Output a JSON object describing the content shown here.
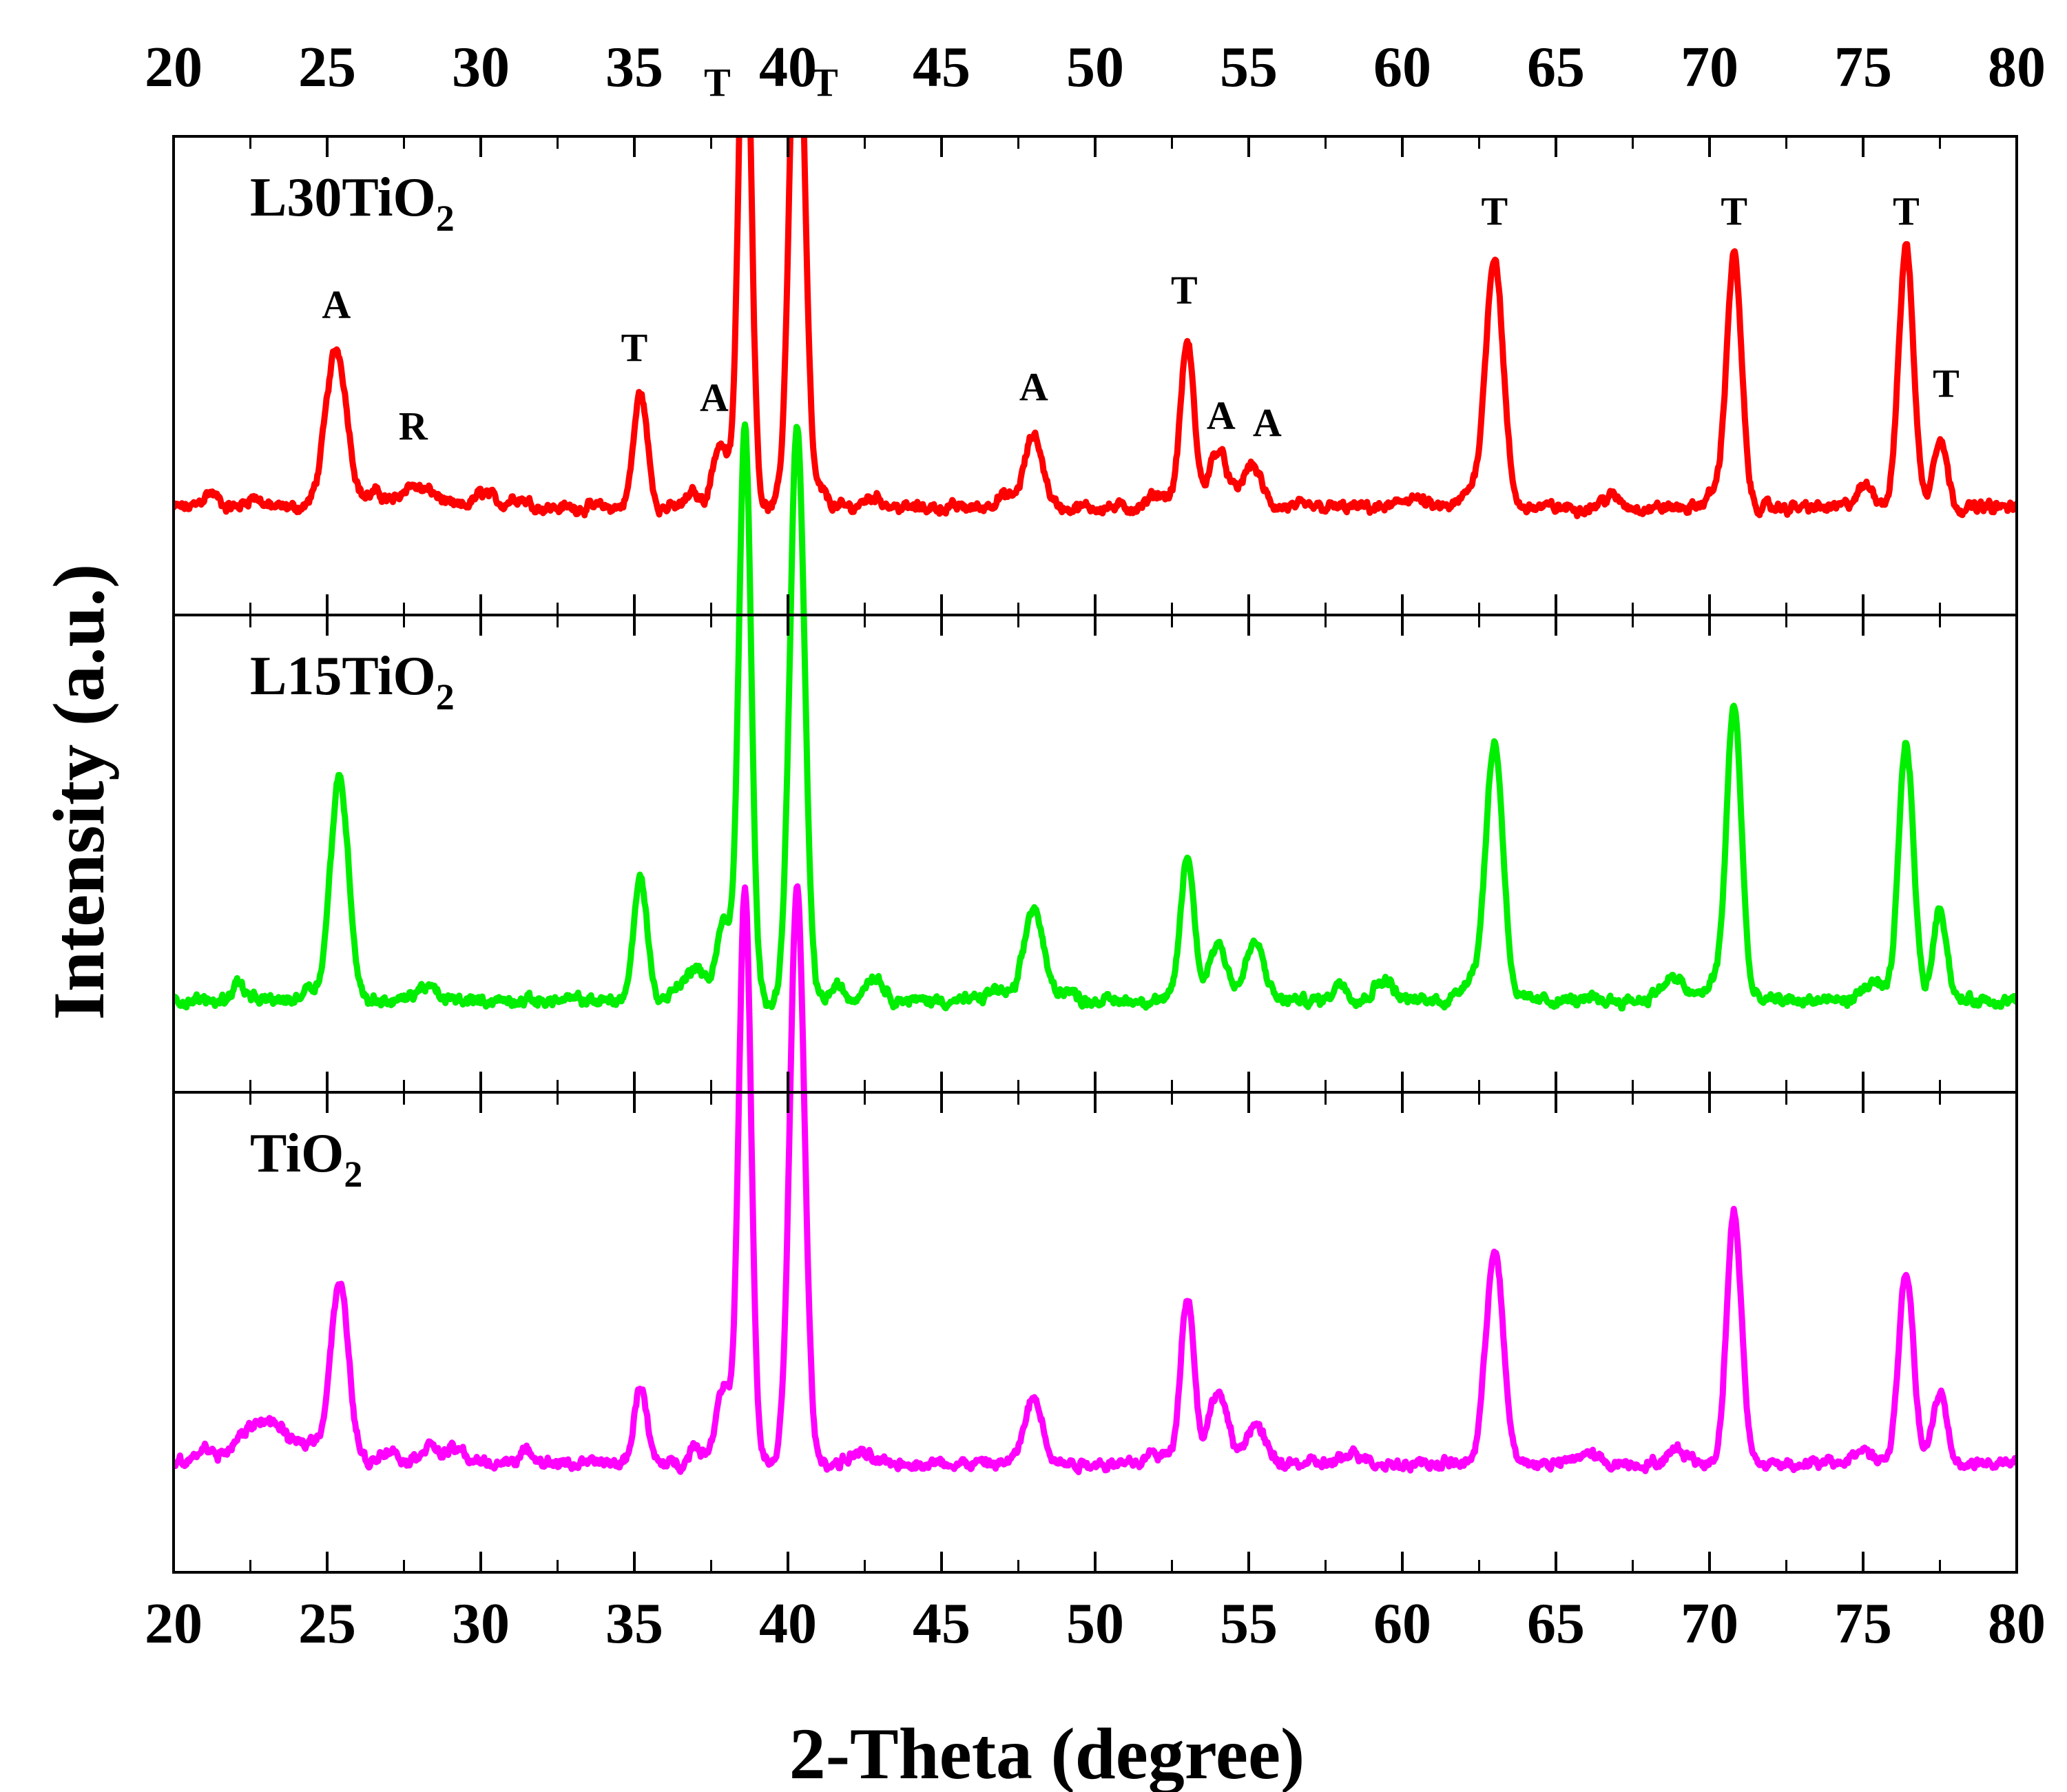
{
  "chart_data": {
    "type": "line",
    "xlabel": "2-Theta (degree)",
    "ylabel": "Intensity (a.u.)",
    "xlim": [
      20,
      80
    ],
    "xticks": [
      20,
      25,
      30,
      35,
      40,
      45,
      50,
      55,
      60,
      65,
      70,
      75,
      80
    ],
    "xtick_labels": [
      "20",
      "25",
      "30",
      "35",
      "40",
      "45",
      "50",
      "55",
      "60",
      "65",
      "70",
      "75",
      "80"
    ],
    "panels": [
      {
        "name": "L30TiO2",
        "label_main": "L30TiO",
        "label_sub": "2",
        "color": "#ff0000",
        "baseline": 0.3,
        "peaks": [
          [
            21.2,
            0.04,
            0.25
          ],
          [
            22.6,
            0.03,
            0.25
          ],
          [
            25.3,
            0.44,
            0.35
          ],
          [
            26.6,
            0.04,
            0.3
          ],
          [
            27.7,
            0.06,
            0.3
          ],
          [
            28.4,
            0.04,
            0.3
          ],
          [
            30.1,
            0.04,
            0.3
          ],
          [
            31.2,
            0.03,
            0.3
          ],
          [
            35.2,
            0.32,
            0.22
          ],
          [
            36.9,
            0.04,
            0.2
          ],
          [
            37.8,
            0.18,
            0.25
          ],
          [
            38.6,
            1.6,
            0.2
          ],
          [
            40.3,
            1.6,
            0.24
          ],
          [
            41.1,
            0.04,
            0.2
          ],
          [
            42.8,
            0.03,
            0.3
          ],
          [
            47.0,
            0.03,
            0.3
          ],
          [
            48.0,
            0.2,
            0.3
          ],
          [
            52.1,
            0.04,
            0.3
          ],
          [
            53.0,
            0.46,
            0.22
          ],
          [
            54.0,
            0.16,
            0.3
          ],
          [
            55.1,
            0.12,
            0.3
          ],
          [
            60.3,
            0.03,
            0.3
          ],
          [
            62.3,
            0.05,
            0.3
          ],
          [
            63.0,
            0.7,
            0.28
          ],
          [
            66.8,
            0.03,
            0.3
          ],
          [
            70.2,
            0.04,
            0.3
          ],
          [
            70.8,
            0.7,
            0.24
          ],
          [
            75.1,
            0.06,
            0.3
          ],
          [
            76.4,
            0.73,
            0.24
          ],
          [
            77.5,
            0.2,
            0.22
          ]
        ]
      },
      {
        "name": "L15TiO2",
        "label_main": "L15TiO",
        "label_sub": "2",
        "color": "#00ee00",
        "baseline": 0.26,
        "peaks": [
          [
            22.1,
            0.05,
            0.2
          ],
          [
            24.4,
            0.04,
            0.2
          ],
          [
            25.4,
            0.62,
            0.3
          ],
          [
            28.2,
            0.04,
            0.3
          ],
          [
            35.2,
            0.34,
            0.22
          ],
          [
            36.4,
            0.04,
            0.2
          ],
          [
            37.0,
            0.1,
            0.25
          ],
          [
            37.9,
            0.22,
            0.25
          ],
          [
            38.6,
            1.6,
            0.2
          ],
          [
            40.3,
            1.6,
            0.24
          ],
          [
            41.6,
            0.04,
            0.2
          ],
          [
            42.8,
            0.07,
            0.3
          ],
          [
            46.8,
            0.03,
            0.3
          ],
          [
            48.0,
            0.26,
            0.3
          ],
          [
            49.0,
            0.03,
            0.3
          ],
          [
            53.0,
            0.4,
            0.22
          ],
          [
            54.0,
            0.16,
            0.3
          ],
          [
            55.2,
            0.16,
            0.3
          ],
          [
            58.0,
            0.05,
            0.25
          ],
          [
            59.4,
            0.06,
            0.3
          ],
          [
            62.2,
            0.06,
            0.3
          ],
          [
            63.0,
            0.72,
            0.28
          ],
          [
            68.8,
            0.06,
            0.4
          ],
          [
            70.2,
            0.05,
            0.3
          ],
          [
            70.8,
            0.82,
            0.24
          ],
          [
            75.3,
            0.05,
            0.3
          ],
          [
            76.4,
            0.72,
            0.24
          ],
          [
            77.5,
            0.26,
            0.22
          ]
        ]
      },
      {
        "name": "TiO2",
        "label_main": "TiO",
        "label_sub": "2",
        "color": "#ff00ff",
        "baseline": 0.3,
        "peaks": [
          [
            21.0,
            0.04,
            0.25
          ],
          [
            22.5,
            0.07,
            0.6
          ],
          [
            23.3,
            0.08,
            0.6
          ],
          [
            24.5,
            0.05,
            0.3
          ],
          [
            25.4,
            0.5,
            0.3
          ],
          [
            27.0,
            0.04,
            0.3
          ],
          [
            28.3,
            0.05,
            0.3
          ],
          [
            29.2,
            0.04,
            0.3
          ],
          [
            31.5,
            0.03,
            0.3
          ],
          [
            35.2,
            0.22,
            0.2
          ],
          [
            37.0,
            0.05,
            0.2
          ],
          [
            37.9,
            0.22,
            0.25
          ],
          [
            38.6,
            1.6,
            0.2
          ],
          [
            40.3,
            1.6,
            0.24
          ],
          [
            42.3,
            0.03,
            0.3
          ],
          [
            48.0,
            0.18,
            0.3
          ],
          [
            52.0,
            0.03,
            0.3
          ],
          [
            53.0,
            0.47,
            0.22
          ],
          [
            54.0,
            0.2,
            0.3
          ],
          [
            55.2,
            0.11,
            0.3
          ],
          [
            58.5,
            0.03,
            0.3
          ],
          [
            63.0,
            0.6,
            0.28
          ],
          [
            66.0,
            0.03,
            0.3
          ],
          [
            69.0,
            0.04,
            0.3
          ],
          [
            70.8,
            0.7,
            0.24
          ],
          [
            75.0,
            0.04,
            0.3
          ],
          [
            76.4,
            0.53,
            0.24
          ],
          [
            77.5,
            0.2,
            0.22
          ]
        ]
      }
    ],
    "annotations": [
      {
        "text": "A",
        "x": 25.3,
        "panel": 0,
        "y": 0.83
      },
      {
        "text": "R",
        "x": 27.8,
        "panel": 0,
        "y": 0.49
      },
      {
        "text": "T",
        "x": 35.0,
        "panel": 0,
        "y": 0.71
      },
      {
        "text": "A",
        "x": 37.6,
        "panel": 0,
        "y": 0.57
      },
      {
        "text": "T",
        "x": 37.7,
        "panel": 0,
        "y": 1.45
      },
      {
        "text": "T",
        "x": 41.2,
        "panel": 0,
        "y": 1.45
      },
      {
        "text": "A",
        "x": 48.0,
        "panel": 0,
        "y": 0.6
      },
      {
        "text": "T",
        "x": 52.9,
        "panel": 0,
        "y": 0.87
      },
      {
        "text": "A",
        "x": 54.1,
        "panel": 0,
        "y": 0.52
      },
      {
        "text": "A",
        "x": 55.6,
        "panel": 0,
        "y": 0.5
      },
      {
        "text": "T",
        "x": 63.0,
        "panel": 0,
        "y": 1.09
      },
      {
        "text": "T",
        "x": 70.8,
        "panel": 0,
        "y": 1.09
      },
      {
        "text": "T",
        "x": 76.4,
        "panel": 0,
        "y": 1.09
      },
      {
        "text": "T",
        "x": 77.7,
        "panel": 0,
        "y": 0.61
      }
    ]
  }
}
